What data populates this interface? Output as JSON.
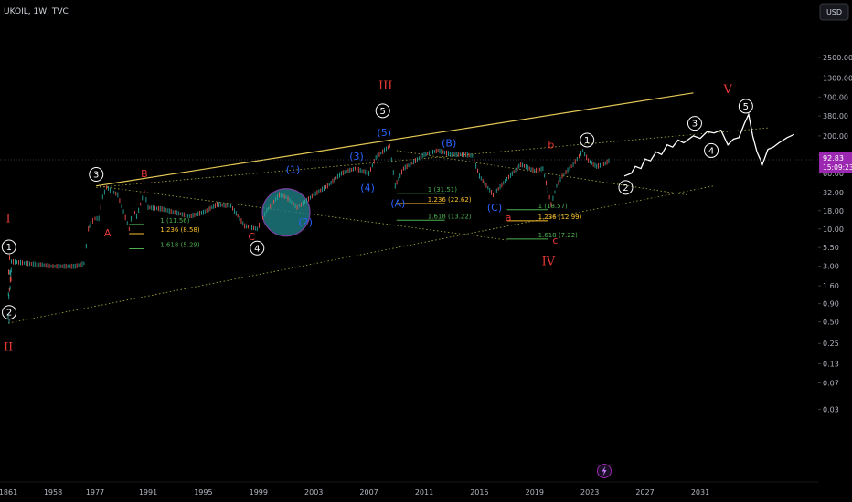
{
  "header": {
    "symbol_label": "UKOIL, 1W, TVC"
  },
  "currency_button": {
    "label": "USD"
  },
  "price_badge": {
    "price": "92.83",
    "countdown": "15:09:23",
    "color": "#9c27b0"
  },
  "flash_icon": {
    "icon": "lightning-icon"
  },
  "colors": {
    "background": "#000000",
    "up_candle": "#26a69a",
    "down_candle": "#ef5350",
    "channel_upper": "#f2d35b",
    "channel_lower": "#c9c94a",
    "wave_roman": "#e53935",
    "wave_blue": "#2962ff",
    "wave_white": "#ffffff",
    "fib_green": "#4caf50",
    "fib_yellow": "#fbc02d",
    "highlight_circle_fill": "#1f7f84",
    "highlight_circle_stroke": "#7b3fa0"
  },
  "chart_data": {
    "type": "line",
    "y_scale": "log",
    "ylim": [
      0.03,
      4000
    ],
    "y_ticks": [
      2500,
      1300,
      700,
      380,
      200,
      110,
      60,
      32,
      18,
      10,
      5.5,
      3,
      1.6,
      0.9,
      0.5,
      0.25,
      0.13,
      0.07,
      0.03
    ],
    "y_tick_labels": [
      "2500.00",
      "1300.00",
      "700.00",
      "380.00",
      "200.00",
      "110.00",
      "60.00",
      "32.00",
      "18.00",
      "10.00",
      "5.50",
      "3.00",
      "1.60",
      "0.90",
      "0.50",
      "0.25",
      "0.13",
      "0.07",
      "0.03"
    ],
    "x_ticks": [
      "1861",
      "1958",
      "1977",
      "1991",
      "1995",
      "1999",
      "2003",
      "2007",
      "2011",
      "2015",
      "2019",
      "2023",
      "2027",
      "2031"
    ],
    "series": [
      {
        "values": [
          [
            1861,
            0.6
          ],
          [
            1862,
            2.5
          ],
          [
            1863,
            0.5
          ],
          [
            1864,
            4.0
          ],
          [
            1865,
            1.5
          ],
          [
            1866,
            2.5
          ],
          [
            1867,
            2.0
          ],
          [
            1868,
            3.5
          ],
          [
            1958,
            3.0
          ],
          [
            1968,
            3.0
          ],
          [
            1972,
            3.3
          ],
          [
            1974,
            10
          ],
          [
            1975,
            12
          ],
          [
            1977,
            14
          ],
          [
            1978,
            14
          ],
          [
            1979,
            28
          ],
          [
            1980,
            38
          ],
          [
            1983,
            30
          ],
          [
            1986,
            10
          ],
          [
            1987,
            19
          ],
          [
            1988,
            15
          ],
          [
            1990,
            33
          ],
          [
            1991,
            20
          ],
          [
            1992,
            19
          ],
          [
            1994,
            15
          ],
          [
            1995,
            17
          ],
          [
            1996,
            22
          ],
          [
            1997,
            21
          ],
          [
            1998,
            11
          ],
          [
            1998.9,
            10
          ],
          [
            1999.6,
            18
          ],
          [
            2000.5,
            30
          ],
          [
            2001,
            28
          ],
          [
            2001.8,
            20
          ],
          [
            2002.5,
            25
          ],
          [
            2003,
            30
          ],
          [
            2004,
            40
          ],
          [
            2005,
            60
          ],
          [
            2006,
            70
          ],
          [
            2007,
            60
          ],
          [
            2007.5,
            100
          ],
          [
            2008.5,
            145
          ],
          [
            2008.9,
            40
          ],
          [
            2009.5,
            70
          ],
          [
            2010,
            80
          ],
          [
            2011,
            110
          ],
          [
            2012,
            125
          ],
          [
            2013,
            110
          ],
          [
            2014,
            110
          ],
          [
            2014.5,
            105
          ],
          [
            2015,
            55
          ],
          [
            2016,
            30
          ],
          [
            2017,
            50
          ],
          [
            2018,
            80
          ],
          [
            2019,
            65
          ],
          [
            2019.6,
            70
          ],
          [
            2020.2,
            22
          ],
          [
            2020.6,
            40
          ],
          [
            2021,
            55
          ],
          [
            2021.8,
            80
          ],
          [
            2022.5,
            125
          ],
          [
            2022.9,
            90
          ],
          [
            2023.5,
            75
          ],
          [
            2024,
            80
          ],
          [
            2024.5,
            92.83
          ]
        ]
      },
      {
        "values": [
          [
            2025.5,
            55
          ],
          [
            2026,
            60
          ],
          [
            2026.3,
            75
          ],
          [
            2026.7,
            70
          ],
          [
            2027,
            95
          ],
          [
            2027.4,
            90
          ],
          [
            2027.8,
            120
          ],
          [
            2028.2,
            110
          ],
          [
            2028.6,
            150
          ],
          [
            2029,
            140
          ],
          [
            2029.4,
            175
          ],
          [
            2029.8,
            160
          ],
          [
            2030.5,
            200
          ],
          [
            2031,
            185
          ],
          [
            2031.5,
            230
          ],
          [
            2032,
            220
          ],
          [
            2032.5,
            240
          ],
          [
            2033,
            150
          ],
          [
            2033.4,
            180
          ],
          [
            2033.8,
            190
          ],
          [
            2034.2,
            300
          ],
          [
            2034.5,
            400
          ],
          [
            2034.8,
            200
          ],
          [
            2035.1,
            120
          ],
          [
            2035.5,
            80
          ],
          [
            2035.9,
            130
          ],
          [
            2036.3,
            140
          ],
          [
            2036.7,
            160
          ],
          [
            2037.3,
            190
          ],
          [
            2037.8,
            210
          ]
        ]
      }
    ],
    "channels": [
      {
        "from": [
          1977.3,
          40
        ],
        "to": [
          2030.5,
          800
        ],
        "kind": "solid"
      },
      {
        "from": [
          1977.3,
          38
        ],
        "to": [
          2036,
          260
        ],
        "kind": "dotted"
      },
      {
        "from": [
          1861,
          0.48
        ],
        "to": [
          2032,
          40
        ],
        "kind": "dotted"
      },
      {
        "from": [
          1977.3,
          40
        ],
        "to": [
          2017,
          7
        ],
        "kind": "dotted"
      },
      {
        "from": [
          2009,
          125
        ],
        "to": [
          2030,
          30
        ],
        "kind": "dotted"
      }
    ],
    "wave_labels": [
      {
        "text": "I",
        "x": 1861.2,
        "y": 14,
        "style": "roman"
      },
      {
        "text": "II",
        "x": 1861.2,
        "y": 0.22,
        "style": "roman"
      },
      {
        "text": "III",
        "x": 2008.2,
        "y": 1000,
        "style": "roman"
      },
      {
        "text": "IV",
        "x": 2020,
        "y": 3.5,
        "style": "roman"
      },
      {
        "text": "V",
        "x": 2033,
        "y": 900,
        "style": "roman"
      },
      {
        "text": "1",
        "x": 1862.6,
        "y": 5.6,
        "style": "circled"
      },
      {
        "text": "2",
        "x": 1863.1,
        "y": 0.68,
        "style": "circled"
      },
      {
        "text": "3",
        "x": 1977.3,
        "y": 58,
        "style": "circled"
      },
      {
        "text": "4",
        "x": 1998.9,
        "y": 5.4,
        "style": "circled"
      },
      {
        "text": "5",
        "x": 2008,
        "y": 450,
        "style": "circled"
      },
      {
        "text": "1",
        "x": 2022.8,
        "y": 175,
        "style": "circled"
      },
      {
        "text": "2",
        "x": 2025.6,
        "y": 38,
        "style": "circled"
      },
      {
        "text": "3",
        "x": 2030.6,
        "y": 300,
        "style": "circled"
      },
      {
        "text": "4",
        "x": 2031.8,
        "y": 125,
        "style": "circled"
      },
      {
        "text": "5",
        "x": 2034.3,
        "y": 520,
        "style": "circled"
      },
      {
        "text": "A",
        "x": 1980.3,
        "y": 8.8,
        "style": "red"
      },
      {
        "text": "B",
        "x": 1990,
        "y": 60,
        "style": "red"
      },
      {
        "text": "C",
        "x": 1998.5,
        "y": 7.8,
        "style": "red"
      },
      {
        "text": "a",
        "x": 2017.1,
        "y": 14.5,
        "style": "red"
      },
      {
        "text": "b",
        "x": 2020.2,
        "y": 150,
        "style": "red"
      },
      {
        "text": "c",
        "x": 2020.5,
        "y": 7.0,
        "style": "red"
      },
      {
        "text": "(1)",
        "x": 2001.5,
        "y": 68,
        "style": "blue"
      },
      {
        "text": "(2)",
        "x": 2002.4,
        "y": 12.5,
        "style": "blue"
      },
      {
        "text": "(3)",
        "x": 2006.1,
        "y": 105,
        "style": "blue"
      },
      {
        "text": "(4)",
        "x": 2006.9,
        "y": 38,
        "style": "blue"
      },
      {
        "text": "(5)",
        "x": 2008.1,
        "y": 225,
        "style": "blue"
      },
      {
        "text": "(A)",
        "x": 2009.1,
        "y": 23,
        "style": "blue"
      },
      {
        "text": "(B)",
        "x": 2012.8,
        "y": 160,
        "style": "blue"
      },
      {
        "text": "(C)",
        "x": 2016.1,
        "y": 20,
        "style": "blue"
      }
    ],
    "fib_levels": [
      {
        "label": "1 (11.56)",
        "x1": 1986,
        "x2": 1990,
        "y": 11.56,
        "color": "green"
      },
      {
        "label": "1.236 (8.58)",
        "x1": 1986,
        "x2": 1990,
        "y": 8.58,
        "color": "yellow"
      },
      {
        "label": "1.618 (5.29)",
        "x1": 1986,
        "x2": 1990,
        "y": 5.29,
        "color": "green"
      },
      {
        "label": "1 (31.51)",
        "x1": 2009,
        "x2": 2012.5,
        "y": 31.51,
        "color": "green"
      },
      {
        "label": "1.236 (22.62)",
        "x1": 2009,
        "x2": 2012.5,
        "y": 22.62,
        "color": "yellow"
      },
      {
        "label": "1.618 (13.22)",
        "x1": 2009,
        "x2": 2012.5,
        "y": 13.22,
        "color": "green"
      },
      {
        "label": "1 (18.57)",
        "x1": 2017,
        "x2": 2020,
        "y": 18.57,
        "color": "green"
      },
      {
        "label": "1.236 (12.99)",
        "x1": 2017,
        "x2": 2020,
        "y": 12.99,
        "color": "yellow"
      },
      {
        "label": "1.618 (7.22)",
        "x1": 2017,
        "x2": 2020,
        "y": 7.22,
        "color": "green"
      }
    ],
    "highlight": {
      "x": 2001,
      "y": 17
    }
  }
}
